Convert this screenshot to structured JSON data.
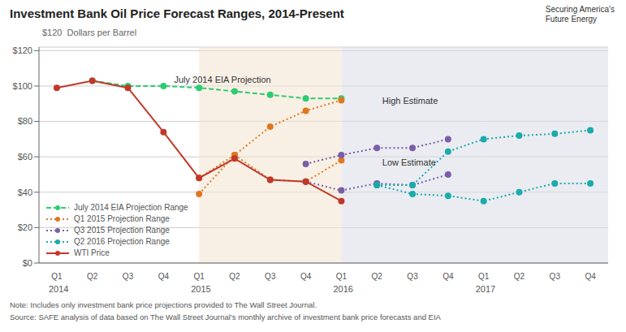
{
  "chart_data": {
    "type": "line",
    "title": "Investment Bank Oil Price Forecast Ranges, 2014-Present",
    "y_label": "$120  Dollars per Barrel",
    "notes": [
      "Note: Includes only investment bank price projections provided to The Wall Street Journal.",
      "Source: SAFE analysis of data based on The Wall Street Journal's monthly archive of investment bank price forecasts and EIA"
    ],
    "logo_text": "Securing America's\nFuture Energy",
    "xlim": [
      -0.5,
      15.5
    ],
    "xticks": [
      {
        "value": 0,
        "label": "Q1"
      },
      {
        "value": 1,
        "label": "Q2"
      },
      {
        "value": 2,
        "label": "Q3"
      },
      {
        "value": 3,
        "label": "Q4"
      },
      {
        "value": 4,
        "label": "Q1"
      },
      {
        "value": 5,
        "label": "Q2"
      },
      {
        "value": 6,
        "label": "Q3"
      },
      {
        "value": 7,
        "label": "Q4"
      },
      {
        "value": 8,
        "label": "Q1"
      },
      {
        "value": 9,
        "label": "Q2"
      },
      {
        "value": 10,
        "label": "Q3"
      },
      {
        "value": 11,
        "label": "Q4"
      },
      {
        "value": 12,
        "label": "Q1"
      },
      {
        "value": 13,
        "label": "Q2"
      },
      {
        "value": 14,
        "label": "Q3"
      },
      {
        "value": 15,
        "label": "Q4"
      }
    ],
    "x_groups": [
      {
        "value": 0,
        "label": "2014"
      },
      {
        "value": 4,
        "label": "2015"
      },
      {
        "value": 8,
        "label": "2016"
      },
      {
        "value": 12,
        "label": "2017"
      }
    ],
    "ylim": [
      0,
      122
    ],
    "yticks": [
      {
        "value": 0,
        "label": "$0"
      },
      {
        "value": 20,
        "label": "$20"
      },
      {
        "value": 40,
        "label": "$40"
      },
      {
        "value": 60,
        "label": "$60"
      },
      {
        "value": 80,
        "label": "$80"
      },
      {
        "value": 100,
        "label": "$100"
      },
      {
        "value": 120,
        "label": "$120"
      }
    ],
    "grid": true,
    "legend": "lower left",
    "shaded_regions": [
      {
        "x_start": 4,
        "x_end": 8,
        "color": "#f5e6d3"
      },
      {
        "x_start": 8,
        "x_end": 12,
        "color": "#dce0ea"
      },
      {
        "x_start": 12,
        "x_end": 15.5,
        "color": "#dce0ea"
      }
    ],
    "annotations": [
      {
        "x": 3.3,
        "y": 102,
        "text": "July 2014 EIA Projection"
      },
      {
        "x": 9.15,
        "y": 90,
        "text": "High Estimate"
      },
      {
        "x": 9.15,
        "y": 55,
        "text": "Low Estimate"
      }
    ],
    "series": [
      {
        "name": "July 2014 EIA Projection Range",
        "color": "#2ecc71",
        "line_style": "dashed",
        "marker": "circle",
        "x": [
          1,
          2,
          3,
          4,
          5,
          6,
          7,
          8
        ],
        "values": [
          103,
          100,
          100,
          99,
          97,
          95,
          93,
          93
        ]
      },
      {
        "name": "Q1 2015 Projection Range",
        "color": "#e07820",
        "line_style": "dotted",
        "marker": "circle",
        "x": [
          4,
          5,
          6,
          7,
          8
        ],
        "values": [
          48,
          61,
          77,
          86,
          92
        ]
      },
      {
        "color": "#e07820",
        "line_style": "dotted",
        "marker": "circle",
        "x": [
          4,
          5,
          6,
          7,
          8
        ],
        "values": [
          39,
          61,
          47,
          46,
          58
        ]
      },
      {
        "name": "Q3 2015 Projection Range",
        "color": "#7b5ea7",
        "line_style": "dotted",
        "marker": "circle",
        "x": [
          7,
          8,
          9,
          10,
          11
        ],
        "values": [
          56,
          61,
          65,
          65,
          70
        ]
      },
      {
        "color": "#7b5ea7",
        "line_style": "dotted",
        "marker": "circle",
        "x": [
          7,
          8,
          9,
          10,
          11
        ],
        "values": [
          46,
          41,
          45,
          44,
          50
        ]
      },
      {
        "name": "Q2 2016 Projection Range",
        "color": "#1aabab",
        "line_style": "dotted",
        "marker": "circle",
        "x": [
          9,
          10,
          11,
          12,
          13,
          14,
          15
        ],
        "values": [
          44,
          44,
          63,
          70,
          72,
          73,
          75
        ]
      },
      {
        "color": "#1aabab",
        "line_style": "dotted",
        "marker": "circle",
        "x": [
          9,
          10,
          11,
          12,
          13,
          14,
          15
        ],
        "values": [
          44,
          39,
          38,
          35,
          40,
          45,
          45
        ]
      },
      {
        "name": "WTI Price",
        "color": "#c0392b",
        "line_style": "solid",
        "marker": "circle",
        "x": [
          0,
          1,
          2,
          3,
          4,
          5,
          6,
          7,
          8
        ],
        "values": [
          99,
          103,
          99,
          74,
          48,
          59,
          47,
          46,
          35
        ]
      }
    ]
  }
}
